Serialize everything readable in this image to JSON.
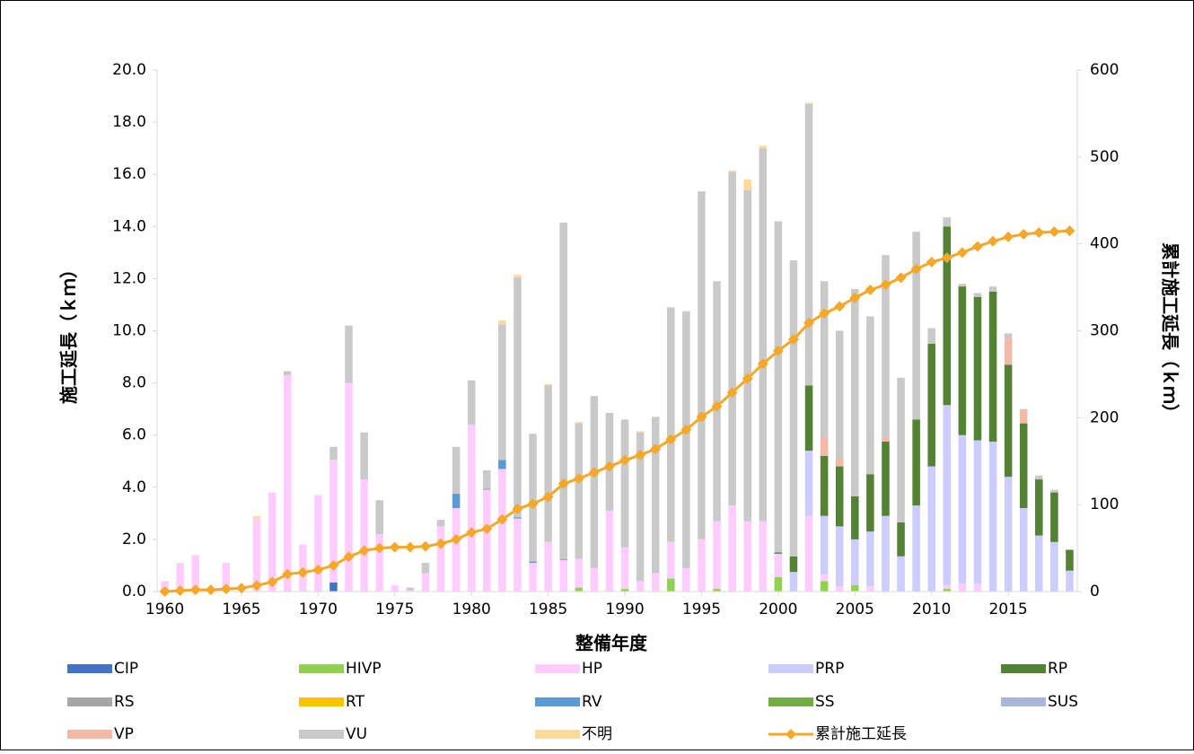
{
  "chart_data": {
    "type": "bar",
    "stacked": true,
    "xlabel": "整備年度",
    "ylabel": "施工延長（ｋｍ）",
    "y2label": "累計施工延長（ｋｍ）",
    "x": [
      1960,
      1961,
      1962,
      1963,
      1964,
      1965,
      1966,
      1967,
      1968,
      1969,
      1970,
      1971,
      1972,
      1973,
      1974,
      1975,
      1976,
      1977,
      1978,
      1979,
      1980,
      1981,
      1982,
      1983,
      1984,
      1985,
      1986,
      1987,
      1988,
      1989,
      1990,
      1991,
      1992,
      1993,
      1994,
      1995,
      1996,
      1997,
      1998,
      1999,
      2000,
      2001,
      2002,
      2003,
      2004,
      2005,
      2006,
      2007,
      2008,
      2009,
      2010,
      2011,
      2012,
      2013,
      2014,
      2015,
      2016,
      2017,
      2018,
      2019
    ],
    "xlim": [
      1959.5,
      2019.5
    ],
    "xticks": [
      1960,
      1965,
      1970,
      1975,
      1980,
      1985,
      1990,
      1995,
      2000,
      2005,
      2010,
      2015
    ],
    "ylim": [
      0,
      20
    ],
    "yticks": [
      {
        "value": 0,
        "label": "0.0"
      },
      {
        "value": 2,
        "label": "2.0"
      },
      {
        "value": 4,
        "label": "4.0"
      },
      {
        "value": 6,
        "label": "6.0"
      },
      {
        "value": 8,
        "label": "8.0"
      },
      {
        "value": 10,
        "label": "10.0"
      },
      {
        "value": 12,
        "label": "12.0"
      },
      {
        "value": 14,
        "label": "14.0"
      },
      {
        "value": 16,
        "label": "16.0"
      },
      {
        "value": 18,
        "label": "18.0"
      },
      {
        "value": 20,
        "label": "20.0"
      }
    ],
    "y2lim": [
      0,
      600
    ],
    "y2ticks": [
      0,
      100,
      200,
      300,
      400,
      500,
      600
    ],
    "legend": "bottom",
    "series": [
      {
        "name": "CIP",
        "color": "#4472c4",
        "values": [
          0,
          0,
          0,
          0,
          0,
          0,
          0,
          0,
          0,
          0,
          0,
          0.35,
          0,
          0,
          0,
          0,
          0,
          0,
          0,
          0,
          0,
          0,
          0,
          0,
          0,
          0,
          0,
          0,
          0,
          0,
          0,
          0,
          0,
          0,
          0,
          0,
          0,
          0,
          0,
          0,
          0,
          0,
          0,
          0,
          0,
          0,
          0,
          0,
          0,
          0,
          0,
          0,
          0,
          0,
          0,
          0,
          0,
          0,
          0,
          0
        ]
      },
      {
        "name": "HIVP",
        "color": "#92d050",
        "values": [
          0,
          0,
          0,
          0,
          0,
          0,
          0,
          0,
          0,
          0,
          0,
          0,
          0,
          0,
          0,
          0,
          0,
          0,
          0,
          0,
          0,
          0,
          0,
          0,
          0,
          0,
          0,
          0.15,
          0,
          0,
          0.1,
          0,
          0,
          0.5,
          0,
          0,
          0.1,
          0,
          0,
          0,
          0.55,
          0,
          0,
          0.4,
          0,
          0.25,
          0,
          0,
          0,
          0,
          0,
          0.1,
          0,
          0,
          0,
          0,
          0,
          0,
          0,
          0
        ]
      },
      {
        "name": "HP",
        "color": "#ffccff",
        "values": [
          0.4,
          1.1,
          1.4,
          0,
          1.1,
          0,
          2.8,
          3.8,
          8.3,
          1.8,
          3.7,
          4.7,
          8.0,
          4.3,
          2.2,
          0.25,
          0.05,
          0.7,
          2.5,
          3.2,
          6.4,
          3.9,
          4.7,
          2.8,
          1.1,
          1.9,
          1.2,
          1.1,
          0.9,
          3.1,
          1.6,
          0.4,
          0.7,
          1.4,
          0.9,
          2.0,
          2.6,
          3.3,
          2.7,
          2.7,
          0.9,
          0,
          2.9,
          0.25,
          0.2,
          0,
          0.2,
          0,
          0,
          0,
          0,
          0.15,
          0.3,
          0.3,
          0,
          0,
          0,
          0,
          0,
          0
        ]
      },
      {
        "name": "PRP",
        "color": "#ccccff",
        "values": [
          0,
          0,
          0,
          0,
          0,
          0,
          0,
          0,
          0,
          0,
          0,
          0,
          0,
          0,
          0,
          0,
          0,
          0,
          0,
          0,
          0,
          0,
          0,
          0,
          0,
          0,
          0,
          0,
          0,
          0,
          0,
          0,
          0,
          0,
          0,
          0,
          0,
          0,
          0,
          0,
          0,
          0.75,
          2.5,
          2.25,
          2.3,
          1.75,
          2.1,
          2.9,
          1.35,
          3.3,
          4.8,
          6.9,
          5.7,
          5.5,
          5.75,
          4.4,
          3.2,
          2.15,
          1.9,
          0.8
        ]
      },
      {
        "name": "RP",
        "color": "#548235",
        "values": [
          0,
          0,
          0,
          0,
          0,
          0,
          0,
          0,
          0,
          0,
          0,
          0,
          0,
          0,
          0,
          0,
          0,
          0,
          0,
          0,
          0,
          0,
          0,
          0,
          0,
          0,
          0,
          0,
          0,
          0,
          0,
          0,
          0,
          0,
          0,
          0,
          0,
          0,
          0,
          0,
          0.05,
          0.6,
          2.5,
          2.3,
          2.3,
          1.65,
          2.2,
          2.85,
          1.3,
          3.3,
          4.7,
          6.85,
          5.7,
          5.5,
          5.75,
          4.3,
          3.25,
          2.15,
          1.9,
          0.8
        ]
      },
      {
        "name": "RS",
        "color": "#a5a5a5",
        "values": [
          0,
          0,
          0,
          0,
          0,
          0,
          0,
          0,
          0,
          0,
          0,
          0,
          0,
          0,
          0,
          0,
          0,
          0,
          0,
          0,
          0,
          0.05,
          0,
          0,
          0,
          0,
          0.05,
          0,
          0,
          0,
          0,
          0,
          0,
          0,
          0,
          0,
          0,
          0,
          0,
          0,
          0,
          0,
          0,
          0,
          0,
          0,
          0,
          0,
          0,
          0,
          0,
          0,
          0,
          0,
          0,
          0,
          0,
          0,
          0,
          0
        ]
      },
      {
        "name": "RT",
        "color": "#ffc000",
        "values": [
          0,
          0,
          0,
          0,
          0,
          0,
          0,
          0,
          0,
          0,
          0,
          0,
          0,
          0,
          0,
          0,
          0,
          0,
          0,
          0,
          0,
          0,
          0,
          0,
          0,
          0,
          0,
          0,
          0,
          0,
          0,
          0,
          0,
          0,
          0,
          0,
          0,
          0,
          0,
          0,
          0,
          0,
          0,
          0,
          0,
          0,
          0,
          0,
          0,
          0,
          0,
          0,
          0,
          0,
          0,
          0,
          0,
          0,
          0,
          0
        ]
      },
      {
        "name": "RV",
        "color": "#5b9bd5",
        "values": [
          0,
          0,
          0,
          0,
          0,
          0,
          0,
          0,
          0,
          0,
          0,
          0,
          0,
          0,
          0,
          0,
          0,
          0,
          0,
          0.55,
          0,
          0,
          0.35,
          0.05,
          0.05,
          0,
          0,
          0,
          0,
          0,
          0,
          0,
          0,
          0,
          0,
          0,
          0,
          0,
          0,
          0,
          0,
          0,
          0,
          0,
          0,
          0,
          0,
          0,
          0,
          0,
          0,
          0,
          0,
          0,
          0,
          0,
          0,
          0,
          0,
          0
        ]
      },
      {
        "name": "SS",
        "color": "#70ad47",
        "values": [
          0,
          0,
          0,
          0,
          0,
          0,
          0,
          0,
          0,
          0,
          0,
          0,
          0,
          0,
          0,
          0,
          0,
          0,
          0,
          0,
          0,
          0,
          0,
          0,
          0,
          0,
          0,
          0,
          0,
          0,
          0,
          0,
          0,
          0,
          0,
          0,
          0,
          0,
          0,
          0,
          0,
          0,
          0,
          0,
          0,
          0,
          0,
          0,
          0,
          0,
          0,
          0,
          0,
          0,
          0,
          0,
          0,
          0,
          0,
          0
        ]
      },
      {
        "name": "SUS",
        "color": "#a9b5d9",
        "values": [
          0,
          0,
          0,
          0,
          0,
          0,
          0,
          0,
          0,
          0,
          0,
          0,
          0,
          0,
          0,
          0,
          0,
          0,
          0,
          0,
          0,
          0,
          0,
          0,
          0,
          0,
          0,
          0,
          0,
          0,
          0,
          0,
          0,
          0,
          0,
          0,
          0,
          0,
          0,
          0,
          0,
          0,
          0,
          0,
          0,
          0,
          0,
          0,
          0,
          0,
          0,
          0,
          0,
          0,
          0,
          0,
          0,
          0,
          0,
          0
        ]
      },
      {
        "name": "VP",
        "color": "#f4b9a6",
        "values": [
          0,
          0,
          0,
          0,
          0,
          0,
          0,
          0,
          0,
          0,
          0,
          0,
          0,
          0,
          0,
          0,
          0,
          0,
          0,
          0,
          0,
          0,
          0,
          0,
          0,
          0,
          0,
          0,
          0,
          0,
          0,
          0,
          0,
          0,
          0,
          0,
          0,
          0,
          0,
          0,
          0,
          0,
          0,
          0.7,
          0.3,
          0,
          0,
          0.15,
          0,
          0,
          0,
          0,
          0,
          0,
          0,
          1.0,
          0.5,
          0,
          0,
          0
        ]
      },
      {
        "name": "VU",
        "color": "#c9c9c9",
        "values": [
          0,
          0,
          0,
          0,
          0,
          0,
          0,
          0,
          0.15,
          0,
          0,
          0.5,
          2.2,
          1.8,
          1.3,
          0,
          0.1,
          0.4,
          0.25,
          1.8,
          1.7,
          0.7,
          5.2,
          9.2,
          4.9,
          6.0,
          12.9,
          5.2,
          6.6,
          3.75,
          4.9,
          5.7,
          6.0,
          9.0,
          9.85,
          13.35,
          9.2,
          12.8,
          12.7,
          14.3,
          12.7,
          11.35,
          10.8,
          6.0,
          4.9,
          7.95,
          6.05,
          7.0,
          5.55,
          7.2,
          0.6,
          0.35,
          0.1,
          0.15,
          0.2,
          0.2,
          0.05,
          0.15,
          0.1,
          0
        ]
      },
      {
        "name": "不明",
        "color": "#ffd999",
        "values": [
          0,
          0,
          0,
          0,
          0,
          0,
          0.1,
          0,
          0,
          0,
          0,
          0,
          0,
          0,
          0,
          0,
          0,
          0,
          0,
          0,
          0,
          0,
          0.15,
          0.1,
          0,
          0.05,
          0,
          0.05,
          0,
          0,
          0,
          0.05,
          0,
          0,
          0,
          0,
          0,
          0.05,
          0.4,
          0.1,
          0,
          0,
          0.05,
          0,
          0,
          0,
          0,
          0,
          0,
          0,
          0,
          0,
          0,
          0,
          0,
          0,
          0,
          0,
          0,
          0
        ]
      },
      {
        "name": "累計施工延長",
        "color": "#f4a82a",
        "type": "line",
        "axis": "y2",
        "values": [
          0,
          1,
          2,
          2,
          3,
          4,
          7,
          11,
          20,
          22,
          25,
          30,
          40,
          47,
          50,
          51,
          51,
          52,
          55,
          60,
          68,
          72,
          83,
          95,
          101,
          109,
          124,
          130,
          137,
          144,
          151,
          157,
          164,
          175,
          186,
          201,
          213,
          229,
          245,
          262,
          277,
          290,
          309,
          320,
          328,
          338,
          347,
          353,
          361,
          371,
          379,
          384,
          390,
          397,
          403,
          408,
          411,
          413,
          414,
          415
        ]
      }
    ]
  }
}
